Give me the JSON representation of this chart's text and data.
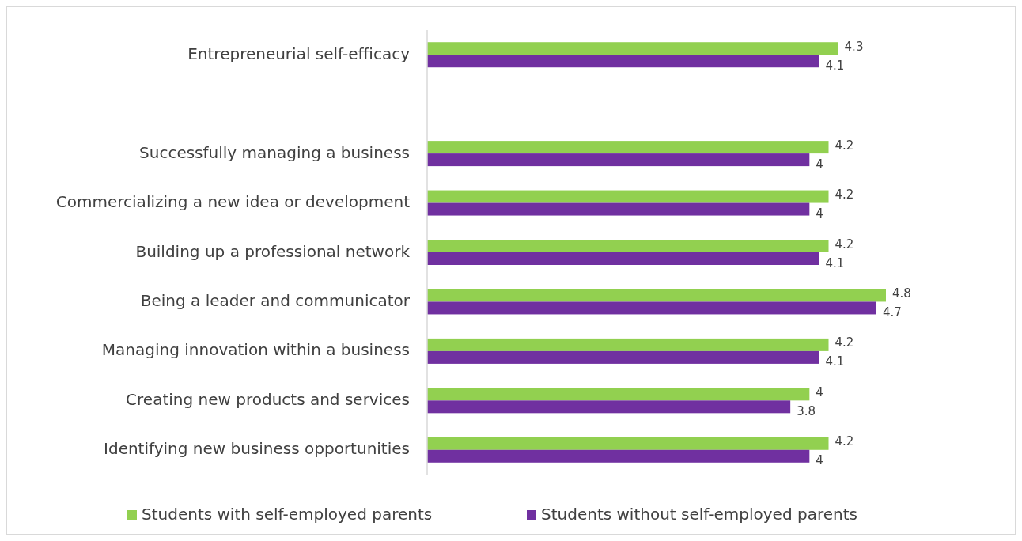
{
  "chart_data": {
    "type": "bar",
    "orientation": "horizontal",
    "categories": [
      "Entrepreneurial self-efficacy",
      null,
      "Successfully managing a business",
      "Commercializing a new idea or development",
      "Building up a professional network",
      "Being a leader and communicator",
      "Managing innovation within a business",
      "Creating new products and services",
      "Identifying new business opportunities"
    ],
    "series": [
      {
        "name": "Students with self-employed parents",
        "color": "#92d050",
        "values": [
          4.3,
          null,
          4.2,
          4.2,
          4.2,
          4.8,
          4.2,
          4,
          4.2
        ]
      },
      {
        "name": "Students without self-employed parents",
        "color": "#7030a0",
        "values": [
          4.1,
          null,
          4,
          4,
          4.1,
          4.7,
          4.1,
          3.8,
          4
        ]
      }
    ],
    "tick_labels": "y",
    "data_labels": true,
    "legend": "bottom"
  }
}
